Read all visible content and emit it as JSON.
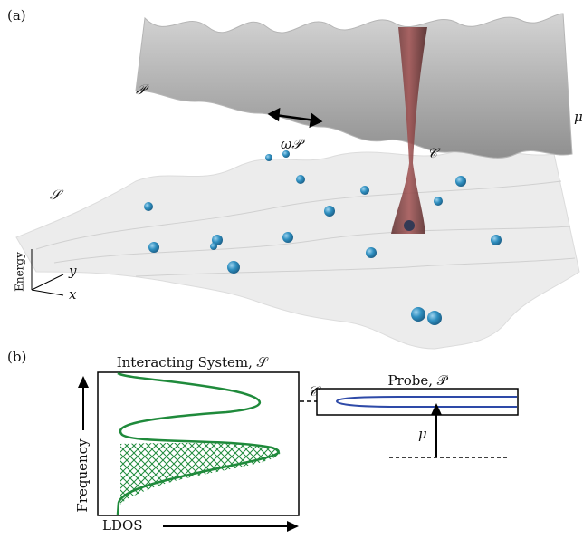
{
  "panel_a": {
    "label": "(a)",
    "probe_symbol": "𝒫",
    "mu": "μ",
    "omega": "ω𝒫",
    "coupling": "𝒞",
    "system_symbol": "𝒮",
    "energy": "Energy",
    "y_axis": "y",
    "x_axis": "x"
  },
  "panel_b": {
    "label": "(b)",
    "system_title": "Interacting System, 𝒮",
    "probe_title": "Probe, 𝒫",
    "coupling": "𝒞",
    "mu": "μ",
    "frequency": "Frequency",
    "ldos": "LDOS"
  }
}
